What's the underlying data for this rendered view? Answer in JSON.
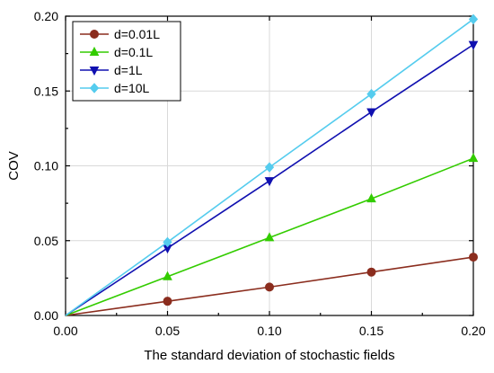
{
  "chart_data": {
    "type": "line",
    "title": "",
    "xlabel": "The standard deviation of stochastic fields",
    "ylabel": "COV",
    "xlim": [
      0.0,
      0.2
    ],
    "ylim": [
      0.0,
      0.2
    ],
    "x_ticks": [
      "0.00",
      "0.05",
      "0.10",
      "0.15",
      "0.20"
    ],
    "y_ticks": [
      "0.00",
      "0.05",
      "0.10",
      "0.15",
      "0.20"
    ],
    "grid": true,
    "legend_position": "top-left",
    "x": [
      0.0,
      0.05,
      0.1,
      0.15,
      0.2
    ],
    "series": [
      {
        "name": "d=0.01L",
        "color": "#8b2d1e",
        "marker": "circle",
        "values": [
          0.0,
          0.0095,
          0.019,
          0.029,
          0.039
        ]
      },
      {
        "name": "d=0.1L",
        "color": "#33cc00",
        "marker": "triangle-up",
        "values": [
          0.0,
          0.026,
          0.052,
          0.078,
          0.105
        ]
      },
      {
        "name": "d=1L",
        "color": "#1010b0",
        "marker": "triangle-down",
        "values": [
          0.0,
          0.045,
          0.09,
          0.136,
          0.181
        ]
      },
      {
        "name": "d=10L",
        "color": "#55ccee",
        "marker": "diamond",
        "values": [
          0.0,
          0.049,
          0.099,
          0.148,
          0.198
        ]
      }
    ]
  }
}
